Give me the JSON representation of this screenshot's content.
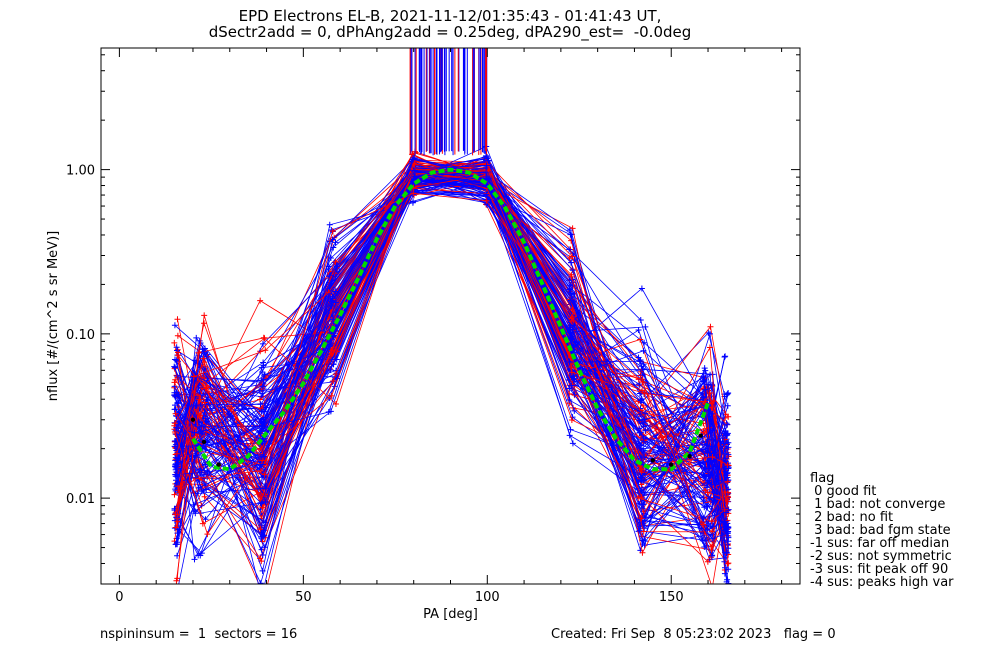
{
  "header": {
    "title_line1": "EPD Electrons EL-B, 2021-11-12/01:35:43 - 01:41:43 UT,",
    "title_line2": "dSectr2add = 0, dPhAng2add = 0.25deg, dPA290_est=  -0.0deg"
  },
  "footer": {
    "left": "nspininsum =  1  sectors = 16",
    "right": "Created: Fri Sep  8 05:23:02 2023   flag = 0"
  },
  "flag_legend": {
    "heading": "flag",
    "items": [
      " 0 good fit",
      " 1 bad: not converge",
      " 2 bad: no fit",
      " 3 bad: bad fgm state",
      "-1 sus: far off median",
      "-2 sus: not symmetric",
      "-3 sus: fit peak off 90",
      "-4 sus: peaks high var"
    ]
  },
  "colors": {
    "series_red": "#ff0000",
    "series_blue": "#0000ff",
    "fit": "#00dd00",
    "median": "#000000",
    "axis": "#000000"
  },
  "chart_data": {
    "type": "line",
    "xlabel": "PA [deg]",
    "ylabel": "nflux [#/(cm^2 s sr MeV)]",
    "xlim": [
      -5,
      185
    ],
    "ylim": [
      0.003,
      5.5
    ],
    "yscale": "log",
    "x_ticks": [
      0,
      50,
      100,
      150
    ],
    "x_tick_labels": [
      "0",
      "50",
      "100",
      "150"
    ],
    "y_ticks": [
      0.01,
      0.1,
      1.0
    ],
    "y_tick_labels": [
      "0.01",
      "0.10",
      "1.00"
    ],
    "grid": false,
    "legend": "none",
    "pa_bins": [
      15.5,
      22,
      39,
      58,
      80,
      100,
      123,
      142,
      160,
      165
    ],
    "median_profile": {
      "x": [
        15.5,
        22,
        39,
        58,
        80,
        100,
        123,
        142,
        160,
        165
      ],
      "y": [
        0.02,
        0.025,
        0.018,
        0.13,
        0.92,
        0.88,
        0.1,
        0.02,
        0.018,
        0.011
      ]
    },
    "fit_curve": {
      "name": "",
      "x": [
        20,
        25,
        30,
        35,
        40,
        45,
        50,
        55,
        60,
        65,
        70,
        75,
        80,
        85,
        90,
        95,
        100,
        105,
        110,
        115,
        120,
        125,
        130,
        135,
        140,
        145,
        150,
        155,
        160
      ],
      "y": [
        0.023,
        0.0155,
        0.015,
        0.018,
        0.025,
        0.034,
        0.05,
        0.08,
        0.13,
        0.22,
        0.38,
        0.6,
        0.82,
        0.96,
        1.0,
        0.96,
        0.82,
        0.58,
        0.36,
        0.2,
        0.11,
        0.06,
        0.035,
        0.023,
        0.017,
        0.015,
        0.015,
        0.019,
        0.038
      ]
    },
    "median_points": {
      "x": [
        20,
        23,
        27,
        145,
        150,
        155,
        158
      ],
      "y": [
        0.03,
        0.022,
        0.016,
        0.017,
        0.016,
        0.018,
        0.024
      ]
    }
  }
}
